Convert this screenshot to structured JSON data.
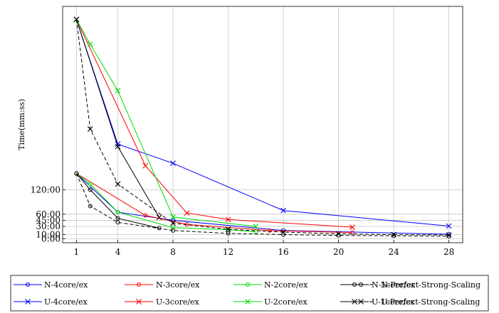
{
  "chart_data": {
    "type": "line",
    "title": "",
    "xlabel": "",
    "ylabel": "Time(mm:ss)",
    "xlim": [
      0,
      29
    ],
    "ylim": [
      -10,
      570
    ],
    "x_ticks": [
      1,
      4,
      8,
      12,
      16,
      20,
      24,
      28
    ],
    "y_ticks": [
      {
        "value": 0,
        "label": "0:00"
      },
      {
        "value": 10,
        "label": "10:00"
      },
      {
        "value": 30,
        "label": "30:00"
      },
      {
        "value": 45,
        "label": "45:00"
      },
      {
        "value": 60,
        "label": "60:00"
      },
      {
        "value": 120,
        "label": "120:00"
      }
    ],
    "grid": true,
    "legend_position": "bottom",
    "series": [
      {
        "name": "N-4core/ex",
        "color": "#0000ff",
        "marker": "circle",
        "dash": "solid",
        "x": [
          1,
          4,
          8,
          16,
          28
        ],
        "y": [
          160,
          65,
          45,
          20,
          11
        ]
      },
      {
        "name": "N-3core/ex",
        "color": "#ff0000",
        "marker": "circle",
        "dash": "solid",
        "x": [
          1,
          6,
          9,
          15,
          21
        ],
        "y": [
          160,
          57,
          35,
          20,
          15
        ]
      },
      {
        "name": "N-2core/ex",
        "color": "#00dd00",
        "marker": "circle",
        "dash": "solid",
        "x": [
          1,
          2,
          4,
          8,
          12,
          14
        ],
        "y": [
          160,
          134,
          65,
          27,
          22,
          17
        ]
      },
      {
        "name": "N-1core/ex",
        "color": "#000000",
        "marker": "circle",
        "dash": "solid",
        "x": [
          1,
          2,
          4,
          7
        ],
        "y": [
          160,
          120,
          50,
          26
        ]
      },
      {
        "name": "N-Perfect-Strong-Scaling",
        "color": "#000000",
        "marker": "circle",
        "dash": "dashed",
        "x": [
          1,
          2,
          4,
          8,
          12,
          16,
          20,
          24,
          28
        ],
        "y": [
          160,
          80,
          40,
          20,
          13,
          10,
          8,
          7,
          6
        ]
      },
      {
        "name": "U-4core/ex",
        "color": "#0000ff",
        "marker": "x",
        "dash": "solid",
        "x": [
          1,
          4,
          8,
          16,
          28
        ],
        "y": [
          538,
          232,
          185,
          69,
          31
        ]
      },
      {
        "name": "U-3core/ex",
        "color": "#ff0000",
        "marker": "x",
        "dash": "solid",
        "x": [
          1,
          6,
          9,
          12,
          21
        ],
        "y": [
          538,
          179,
          63,
          47,
          28
        ]
      },
      {
        "name": "U-2core/ex",
        "color": "#00dd00",
        "marker": "x",
        "dash": "solid",
        "x": [
          1,
          2,
          4,
          8,
          14
        ],
        "y": [
          538,
          477,
          363,
          53,
          30
        ]
      },
      {
        "name": "U-1core/ex",
        "color": "#000000",
        "marker": "x",
        "dash": "solid",
        "x": [
          1,
          4,
          7
        ],
        "y": [
          538,
          226,
          52
        ]
      },
      {
        "name": "U-Perfect-Strong-Scaling",
        "color": "#000000",
        "marker": "x",
        "dash": "dashed",
        "x": [
          1,
          2,
          4,
          8,
          12,
          16,
          20,
          24,
          28
        ],
        "y": [
          538,
          269,
          134,
          38,
          23,
          16,
          12,
          10,
          9
        ]
      }
    ]
  }
}
